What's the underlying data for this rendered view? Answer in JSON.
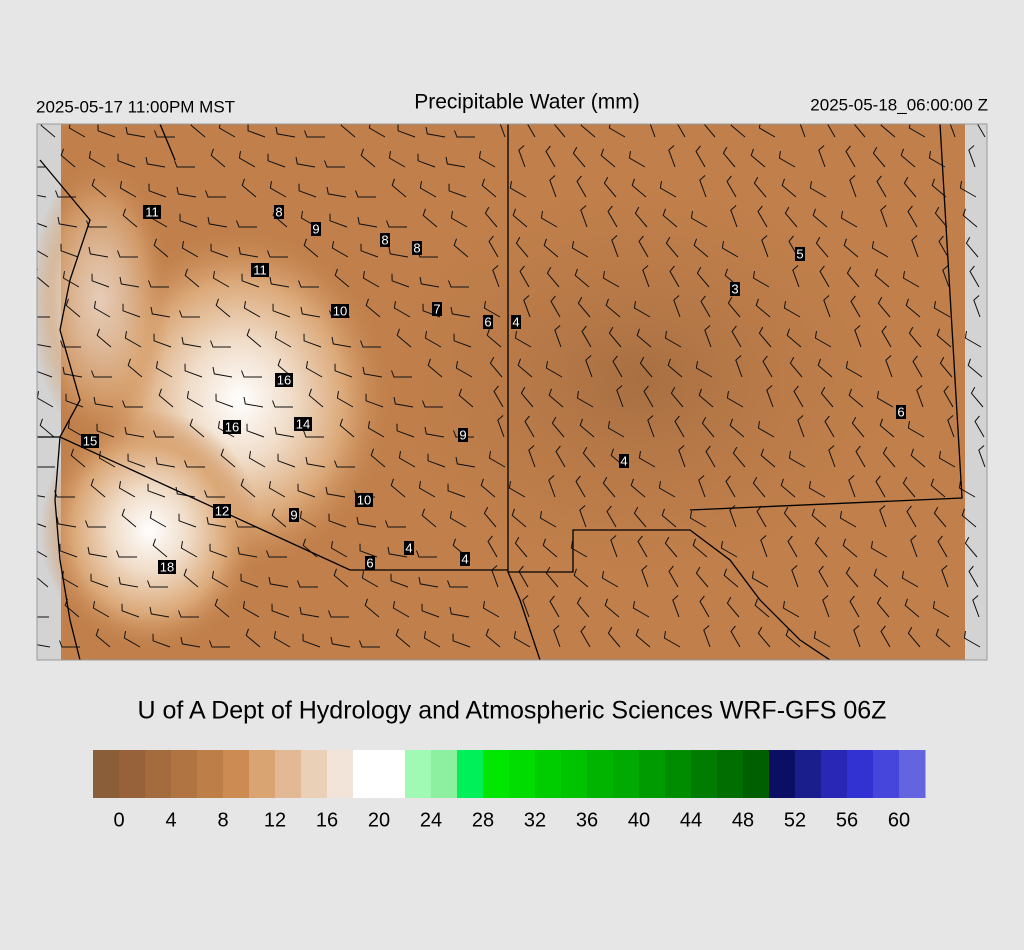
{
  "header": {
    "left": "2025-05-17 11:00PM MST",
    "title": "Precipitable Water (mm)",
    "right": "2025-05-18_06:00:00 Z"
  },
  "stations": [
    11,
    8,
    9,
    8,
    8,
    11,
    10,
    7,
    6,
    4,
    5,
    3,
    16,
    16,
    14,
    15,
    9,
    4,
    6,
    10,
    12,
    9,
    4,
    4,
    6,
    18
  ],
  "credit": "U of A Dept of Hydrology and Atmospheric Sciences WRF-GFS 06Z",
  "colorbar": {
    "range": [
      -2,
      62
    ],
    "ticks": [
      0,
      4,
      8,
      12,
      16,
      20,
      24,
      28,
      32,
      36,
      40,
      44,
      48,
      52,
      56,
      60
    ],
    "colors": [
      "#8b5e3a",
      "#976239",
      "#a36b3e",
      "#b07442",
      "#bd7e47",
      "#cb8b52",
      "#d9a472",
      "#e3b894",
      "#ebd0b8",
      "#f2e4d8",
      "#ffffff",
      "#ffffff",
      "#a0fab4",
      "#8cf0a0",
      "#00f05a",
      "#00e600",
      "#00dc00",
      "#00cd00",
      "#00c300",
      "#00b400",
      "#00aa00",
      "#009b00",
      "#008c00",
      "#007d00",
      "#006e00",
      "#005f00",
      "#0a0f64",
      "#1a1e8c",
      "#2828b4",
      "#3232d2",
      "#4646dc",
      "#6464e0"
    ]
  }
}
